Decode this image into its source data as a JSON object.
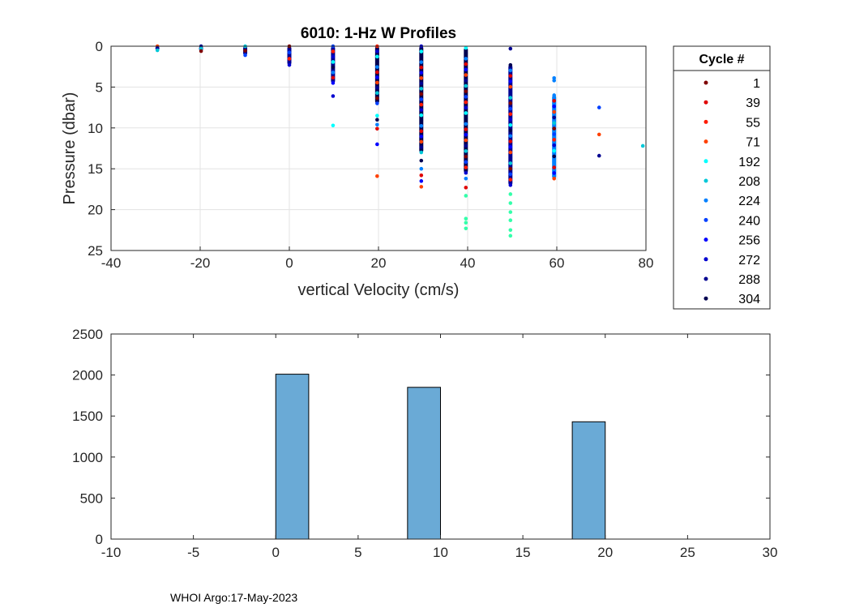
{
  "footer": "WHOI Argo:17-May-2023",
  "chart_data": [
    {
      "type": "scatter",
      "title": "6010: 1-Hz W Profiles",
      "xlabel": "vertical Velocity (cm/s)",
      "ylabel": "Pressure (dbar)",
      "xlim": [
        -40,
        80
      ],
      "ylim": [
        0,
        25
      ],
      "y_reversed": true,
      "grid": true,
      "xticks": [
        -40,
        -20,
        0,
        20,
        40,
        60,
        80
      ],
      "yticks": [
        0,
        5,
        10,
        15,
        20,
        25
      ],
      "legend": {
        "title": "Cycle #",
        "placement": "outside-right",
        "entries": [
          {
            "label": "1",
            "color": "#7f0000"
          },
          {
            "label": "39",
            "color": "#e00000"
          },
          {
            "label": "55",
            "color": "#ff1a00"
          },
          {
            "label": "71",
            "color": "#ff4000"
          },
          {
            "label": "192",
            "color": "#00ffff"
          },
          {
            "label": "208",
            "color": "#00c8d8"
          },
          {
            "label": "224",
            "color": "#0080ff"
          },
          {
            "label": "240",
            "color": "#0040ff"
          },
          {
            "label": "256",
            "color": "#0000ff"
          },
          {
            "label": "272",
            "color": "#0000d0"
          },
          {
            "label": "288",
            "color": "#000090"
          },
          {
            "label": "304",
            "color": "#000050"
          }
        ]
      },
      "columns": [
        {
          "x": -29.6,
          "pmin": 0.0,
          "pmax": 0.5,
          "extra": [],
          "color": "#0000ff"
        },
        {
          "x": -19.8,
          "pmin": 0.0,
          "pmax": 0.6,
          "extra": [],
          "color": "#000090"
        },
        {
          "x": -9.9,
          "pmin": 0.0,
          "pmax": 1.1,
          "extra": [],
          "color": "#000090"
        },
        {
          "x": 0.0,
          "pmin": 0.0,
          "pmax": 2.3,
          "extra": [],
          "color": "#000090"
        },
        {
          "x": 9.8,
          "pmin": 0.0,
          "pmax": 4.5,
          "extra": [
            6.1,
            9.7
          ],
          "color": "#000090"
        },
        {
          "x": 19.7,
          "pmin": 0.0,
          "pmax": 7.0,
          "extra": [
            8.5,
            9.0,
            9.6,
            10.1,
            12.0,
            15.9
          ],
          "color": "#000050"
        },
        {
          "x": 29.6,
          "pmin": 0.0,
          "pmax": 13.0,
          "extra": [
            14.0,
            15.0,
            15.8,
            16.5,
            17.2
          ],
          "color": "#000050"
        },
        {
          "x": 39.6,
          "pmin": 0.2,
          "pmax": 15.5,
          "extra": [
            16.2,
            17.3,
            18.3,
            21.1,
            21.6,
            22.3
          ],
          "color": "#000050"
        },
        {
          "x": 49.6,
          "pmin": 2.3,
          "pmax": 17.0,
          "extra": [
            0.3,
            18.1,
            19.2,
            20.3,
            21.3,
            22.5,
            23.2
          ],
          "color": "#000090"
        },
        {
          "x": 59.4,
          "pmin": 6.0,
          "pmax": 16.2,
          "extra": [
            3.9,
            4.2
          ],
          "color": "#0080ff"
        },
        {
          "x": 69.5,
          "pmin": 7.5,
          "pmax": 7.5,
          "extra": [
            10.8,
            13.4
          ],
          "color": "#0040ff"
        },
        {
          "x": 79.3,
          "pmin": 12.2,
          "pmax": 12.2,
          "extra": [],
          "color": "#00c8d8"
        }
      ]
    },
    {
      "type": "bar",
      "title": "",
      "xlabel": "",
      "ylabel": "",
      "xlim": [
        -10,
        30
      ],
      "ylim": [
        0,
        2500
      ],
      "grid": false,
      "xticks": [
        -10,
        -5,
        0,
        5,
        10,
        15,
        20,
        25,
        30
      ],
      "yticks": [
        0,
        500,
        1000,
        1500,
        2000,
        2500
      ],
      "bin_width": 2,
      "bars": [
        {
          "left": 0,
          "value": 2010
        },
        {
          "left": 8,
          "value": 1850
        },
        {
          "left": 18,
          "value": 1430
        }
      ],
      "bar_color": "#6aaad6"
    }
  ]
}
